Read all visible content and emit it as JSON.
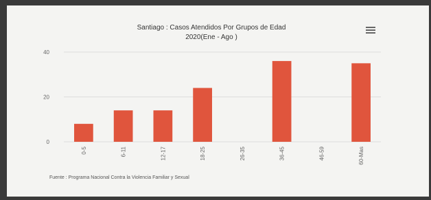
{
  "chart_data": {
    "type": "bar",
    "title": "Santiago : Casos Atendidos Por Grupos de Edad",
    "subtitle": "2020(Ene - Ago )",
    "categories": [
      "0-5",
      "6-11",
      "12-17",
      "18-25",
      "26-35",
      "36-45",
      "46-59",
      "60-Mas"
    ],
    "values": [
      8,
      14,
      14,
      24,
      0,
      36,
      0,
      35
    ],
    "color": "#e0553d",
    "ylim": [
      0,
      40
    ],
    "yticks": [
      0,
      20,
      40
    ],
    "grid": true,
    "credits": "Fuente : Programa Nacional Contra la Violencia Familiar y Sexual"
  }
}
